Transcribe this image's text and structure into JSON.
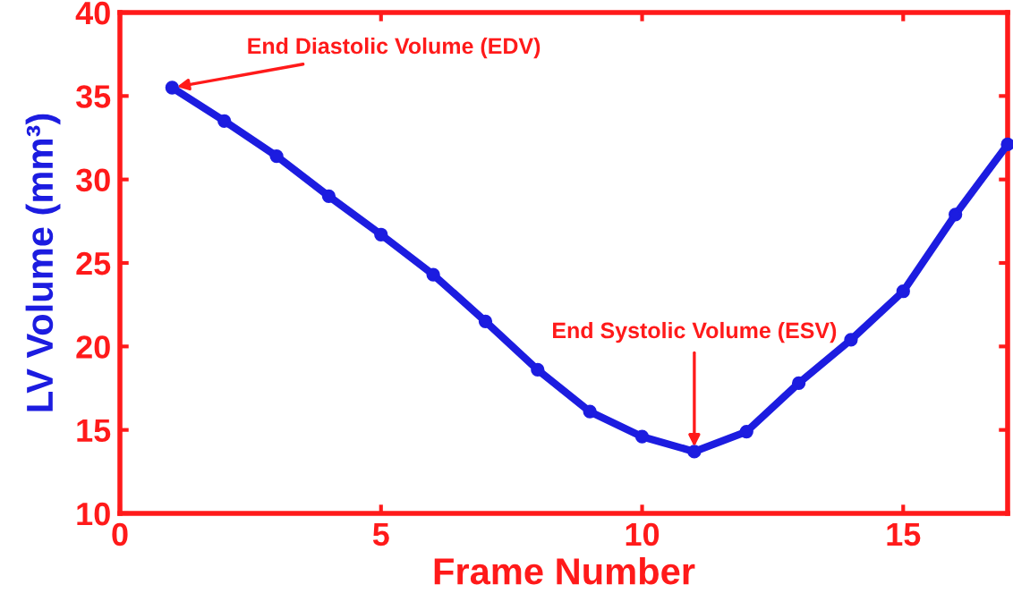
{
  "chart_data": {
    "type": "line",
    "xlabel": "Frame Number",
    "ylabel": "LV Volume (mm³)",
    "x": [
      1,
      2,
      3,
      4,
      5,
      6,
      7,
      8,
      9,
      10,
      11,
      12,
      13,
      14,
      15,
      16,
      17
    ],
    "series": [
      {
        "color": "#1c1ce0",
        "values": [
          35.5,
          33.5,
          31.4,
          29.0,
          26.7,
          24.3,
          21.5,
          18.6,
          16.1,
          14.6,
          13.7,
          14.9,
          17.8,
          20.4,
          23.3,
          27.9,
          32.1
        ]
      }
    ],
    "xlim": [
      0,
      17
    ],
    "ylim": [
      10,
      40
    ],
    "xticks": [
      0,
      5,
      10,
      15
    ],
    "yticks": [
      10,
      15,
      20,
      25,
      30,
      35,
      40
    ],
    "grid": false,
    "legend": false,
    "marker": "circle",
    "line_style": "solid",
    "annotations": [
      {
        "text": "End Diastolic Volume (EDV)",
        "x": 1,
        "y": 35.5
      },
      {
        "text": "End Systolic Volume (ESV)",
        "x": 11,
        "y": 13.7
      }
    ]
  }
}
